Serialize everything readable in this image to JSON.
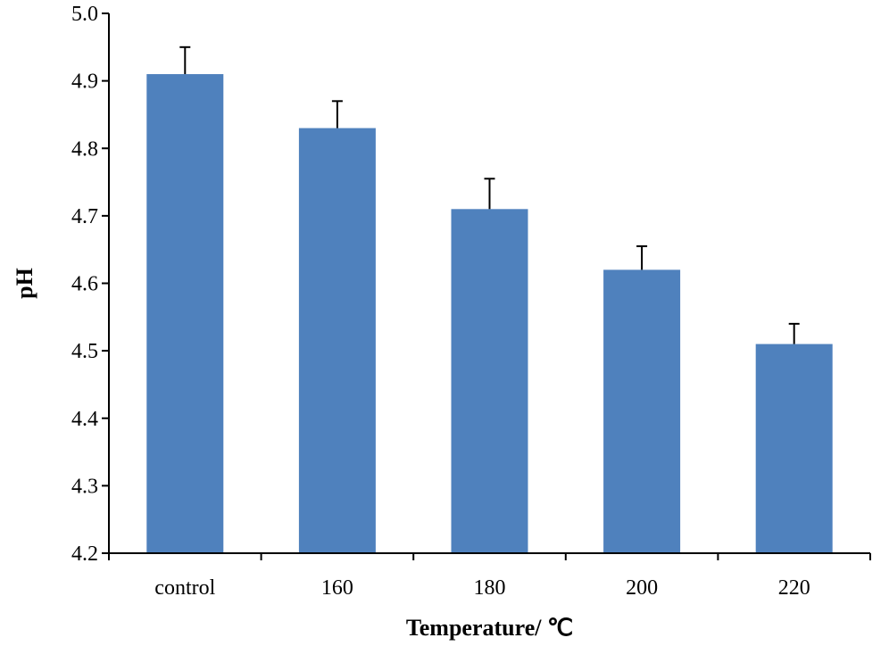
{
  "chart_data": {
    "type": "bar",
    "categories": [
      "control",
      "160",
      "180",
      "200",
      "220"
    ],
    "values": [
      4.91,
      4.83,
      4.71,
      4.62,
      4.51
    ],
    "error": [
      0.04,
      0.04,
      0.045,
      0.035,
      0.03
    ],
    "title": "",
    "xlabel": "Temperature/ ℃",
    "ylabel": "pH",
    "ylim": [
      4.2,
      5.0
    ],
    "yticks": [
      "4.2",
      "4.3",
      "4.4",
      "4.5",
      "4.6",
      "4.7",
      "4.8",
      "4.9",
      "5.0"
    ],
    "bar_color": "#4f81bd",
    "grid": false,
    "legend": "none"
  }
}
